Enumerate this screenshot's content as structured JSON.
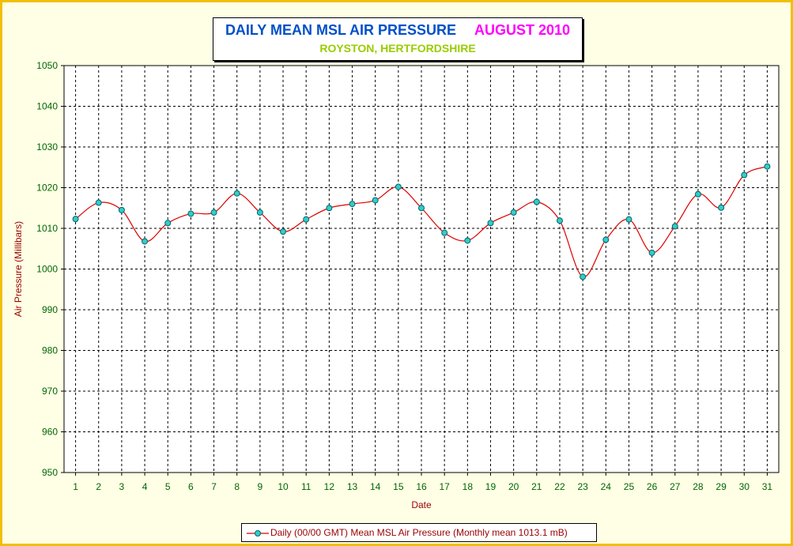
{
  "chart_data": {
    "type": "line",
    "title": "DAILY MEAN MSL AIR PRESSURE",
    "title_month": "AUGUST 2010",
    "subtitle": "ROYSTON, HERTFORDSHIRE",
    "xlabel": "Date",
    "ylabel": "Air Pressure (Millibars)",
    "ylim": [
      950,
      1050
    ],
    "yticks": [
      950,
      960,
      970,
      980,
      990,
      1000,
      1010,
      1020,
      1030,
      1040,
      1050
    ],
    "x": [
      1,
      2,
      3,
      4,
      5,
      6,
      7,
      8,
      9,
      10,
      11,
      12,
      13,
      14,
      15,
      16,
      17,
      18,
      19,
      20,
      21,
      22,
      23,
      24,
      25,
      26,
      27,
      28,
      29,
      30,
      31
    ],
    "series": [
      {
        "name": "Daily (00/00 GMT) Mean MSL Air Pressure (Monthly mean 1013.1 mB)",
        "values": [
          1012.3,
          1016.3,
          1014.5,
          1006.8,
          1011.3,
          1013.6,
          1013.9,
          1018.6,
          1013.9,
          1009.2,
          1012.2,
          1015.0,
          1016.0,
          1016.9,
          1020.2,
          1015.0,
          1008.9,
          1007.0,
          1011.3,
          1013.9,
          1016.5,
          1011.9,
          998.1,
          1007.2,
          1012.2,
          1004.0,
          1010.5,
          1018.4,
          1015.1,
          1023.1,
          1025.2
        ]
      }
    ],
    "grid": true,
    "legend_position": "bottom",
    "colors": {
      "line": "#dd0000",
      "marker_fill": "#33cccc",
      "marker_stroke": "#006666",
      "axis_tick_labels": "#006600",
      "axis_titles": "#990000",
      "frame_border": "#f0c000",
      "background": "#ffffe6"
    }
  }
}
